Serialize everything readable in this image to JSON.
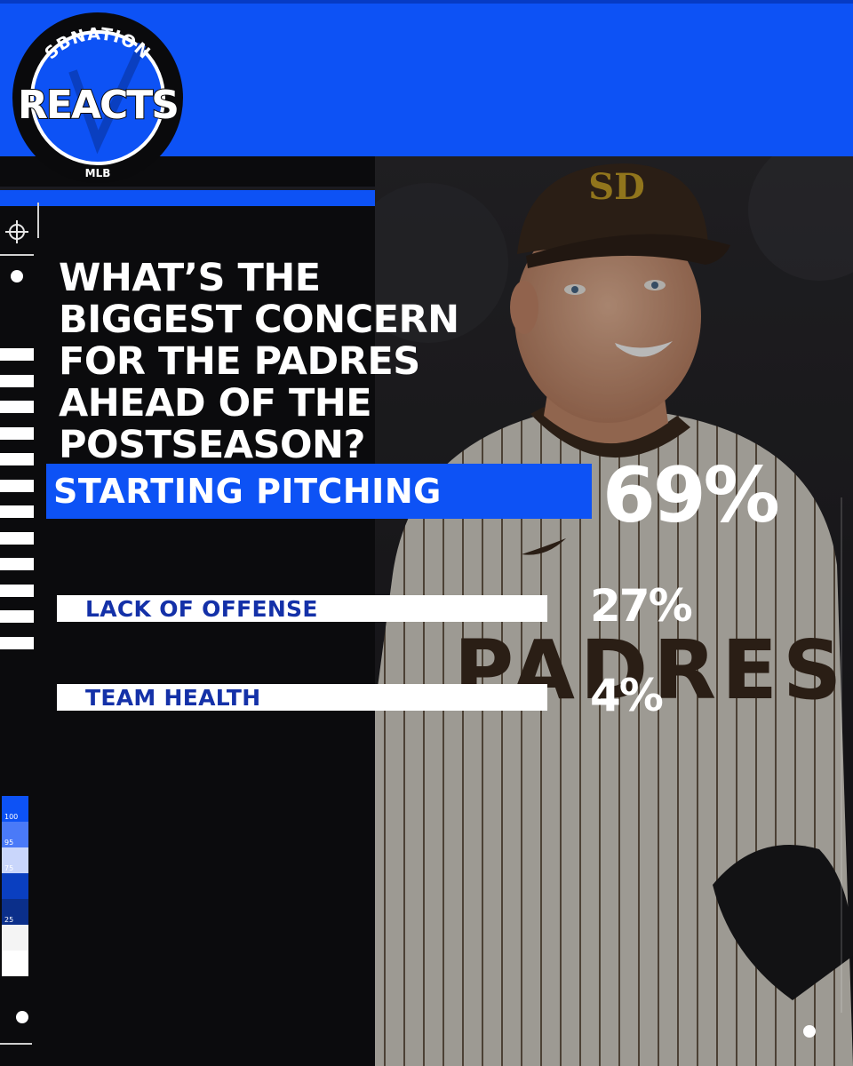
{
  "brand": {
    "arc_text": "SBNATION",
    "main_text": "REACTS",
    "sub_text": "MLB"
  },
  "question": "WHAT’S THE BIGGEST CONCERN FOR THE PADRES AHEAD OF THE POSTSEASON?",
  "results": [
    {
      "label": "STARTING PITCHING",
      "percent": "69%",
      "value": 69
    },
    {
      "label": "LACK OF OFFENSE",
      "percent": "27%",
      "value": 27
    },
    {
      "label": "TEAM HEALTH",
      "percent": "4%",
      "value": 4
    }
  ],
  "photo": {
    "cap_logo_text": "SD",
    "jersey_text": "PADRES"
  },
  "scale_labels": [
    "100",
    "95",
    "75",
    "25"
  ],
  "colors": {
    "brand_blue": "#0d52f5",
    "label_blue": "#1431a8",
    "background": "#0b0b0d",
    "padres_brown": "#3b2a1e",
    "padres_gold": "#c9a227"
  }
}
